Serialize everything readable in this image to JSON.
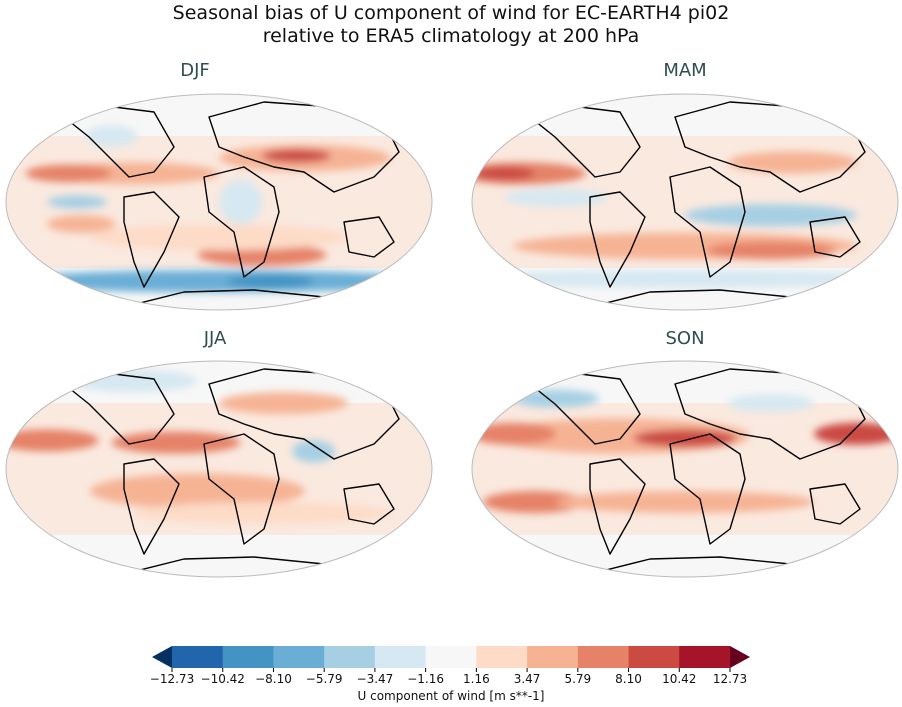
{
  "title_line1": "Seasonal bias of U component of wind for EC-EARTH4 pi02",
  "title_line2": "relative to ERA5 climatology at 200 hPa",
  "panels": [
    {
      "label": "DJF"
    },
    {
      "label": "MAM"
    },
    {
      "label": "JJA"
    },
    {
      "label": "SON"
    }
  ],
  "colorbar": {
    "label": "U component of wind [m s**-1]",
    "ticks": [
      "−12.73",
      "−10.42",
      "−8.10",
      "−5.79",
      "−3.47",
      "−1.16",
      "1.16",
      "3.47",
      "5.79",
      "8.10",
      "10.42",
      "12.73"
    ],
    "colors": [
      "#053061",
      "#2166ac",
      "#4393c3",
      "#6aaed6",
      "#a6cfe4",
      "#d6e8f1",
      "#f7f7f7",
      "#fddbc7",
      "#f6b394",
      "#e58267",
      "#cb4a42",
      "#a51429",
      "#67001f"
    ],
    "extend": "both"
  }
}
